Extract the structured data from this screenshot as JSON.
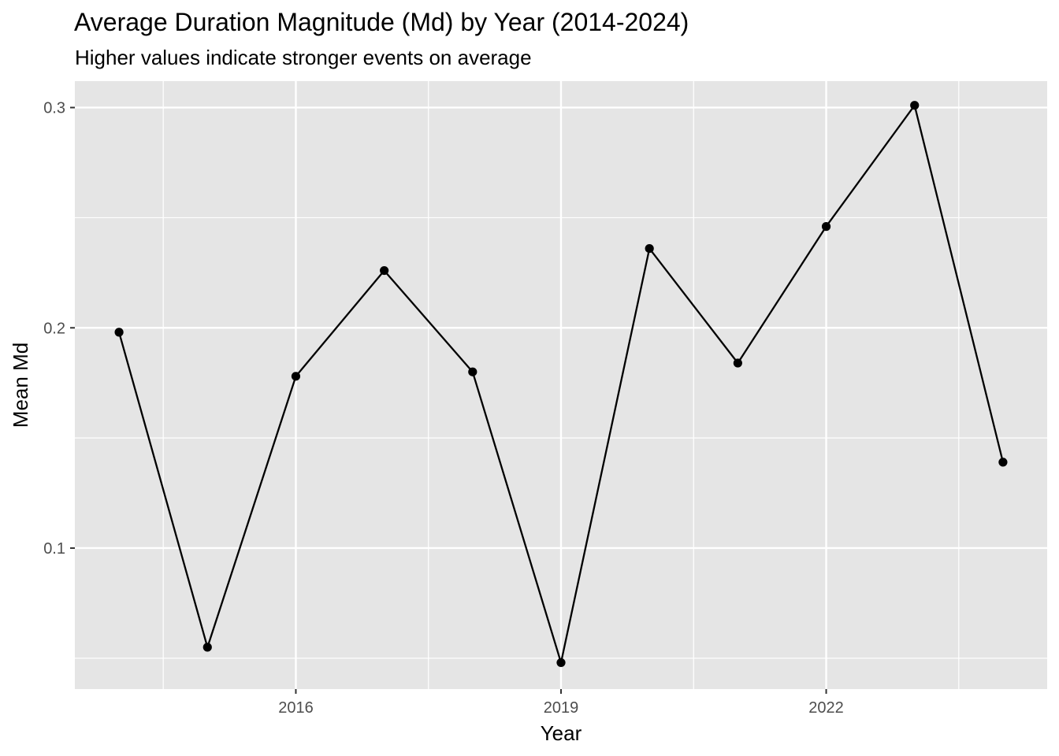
{
  "chart_data": {
    "type": "line",
    "title": "Average Duration Magnitude (Md) by Year (2014-2024)",
    "subtitle": "Higher values indicate stronger events on average",
    "xlabel": "Year",
    "ylabel": "Mean Md",
    "x": [
      2014,
      2015,
      2016,
      2017,
      2018,
      2019,
      2020,
      2021,
      2022,
      2023,
      2024
    ],
    "series": [
      {
        "values": [
          0.198,
          0.055,
          0.178,
          0.226,
          0.18,
          0.048,
          0.236,
          0.184,
          0.246,
          0.301,
          0.139
        ]
      }
    ],
    "x_ticks": [
      2016,
      2019,
      2022
    ],
    "x_tick_labels": [
      "2016",
      "2019",
      "2022"
    ],
    "y_ticks": [
      0.1,
      0.2,
      0.3
    ],
    "y_tick_labels": [
      "0.1",
      "0.2",
      "0.3"
    ],
    "xlim": [
      2013.5,
      2024.5
    ],
    "ylim": [
      0.036,
      0.312
    ],
    "grid": true,
    "colors": {
      "panel": "#e5e5e5",
      "grid": "#ffffff",
      "line": "#000000",
      "tick_text": "#4d4d4d"
    }
  }
}
